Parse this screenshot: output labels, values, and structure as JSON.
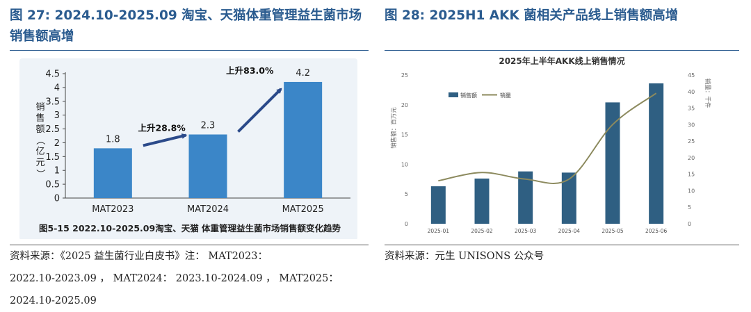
{
  "left": {
    "figure_title": "图 27: 2024.10-2025.09 淘宝、天猫体重管理益生菌市场销售额高增",
    "source_line1": "资料来源：《2025 益生菌行业白皮书》注： MAT2023：",
    "source_line2": "2022.10-2023.09 ， MAT2024： 2023.10-2024.09 ， MAT2025：",
    "source_line3": "2024.10-2025.09"
  },
  "right": {
    "figure_title": "图 28: 2025H1 AKK 菌相关产品线上销售额高增",
    "source_line1": "资料来源：元生 UNISONS 公众号"
  },
  "chart_data": [
    {
      "type": "bar",
      "title": "图5-15 2022.10-2025.09淘宝、天猫 体重管理益生菌市场销售额变化趋势",
      "ylabel": "销售额（亿元）",
      "categories": [
        "MAT2023",
        "MAT2024",
        "MAT2025"
      ],
      "values": [
        1.8,
        2.3,
        4.2
      ],
      "ylim": [
        0,
        4.5
      ],
      "yticks": [
        "0",
        "0.5",
        "1",
        "1.5",
        "2",
        "2.5",
        "3",
        "3.5",
        "4",
        "4.5"
      ],
      "annotations": [
        "上升28.8%",
        "上升83.0%"
      ],
      "grid": false,
      "colors": {
        "bar": "#3b86c8",
        "arrow": "#2b4a8a",
        "background": "#eef3f8"
      }
    },
    {
      "type": "bar",
      "title": "2025年上半年AKK线上销售情况",
      "categories": [
        "2025-01",
        "2025-02",
        "2025-03",
        "2025-04",
        "2025-05",
        "2025-06"
      ],
      "series": [
        {
          "name": "销售额",
          "type": "bar",
          "axis": "left",
          "values": [
            6.3,
            7.6,
            8.8,
            8.6,
            20.4,
            23.6
          ]
        },
        {
          "name": "销量",
          "type": "line",
          "axis": "right",
          "values": [
            13,
            15.5,
            13.5,
            13.5,
            30,
            39.5
          ]
        }
      ],
      "ylabel": "销售额：百万元",
      "y2label": "销量：千件",
      "ylim": [
        0,
        25
      ],
      "y2lim": [
        0,
        45
      ],
      "yticks": [
        "0",
        "5",
        "10",
        "15",
        "20",
        "25"
      ],
      "y2ticks": [
        "0",
        "5",
        "10",
        "15",
        "20",
        "25",
        "30",
        "35",
        "40",
        "45"
      ],
      "legend_position": "top-left",
      "grid": false,
      "colors": {
        "bar": "#2f5f82",
        "line": "#8c8a5e",
        "background": "#ffffff"
      }
    }
  ]
}
